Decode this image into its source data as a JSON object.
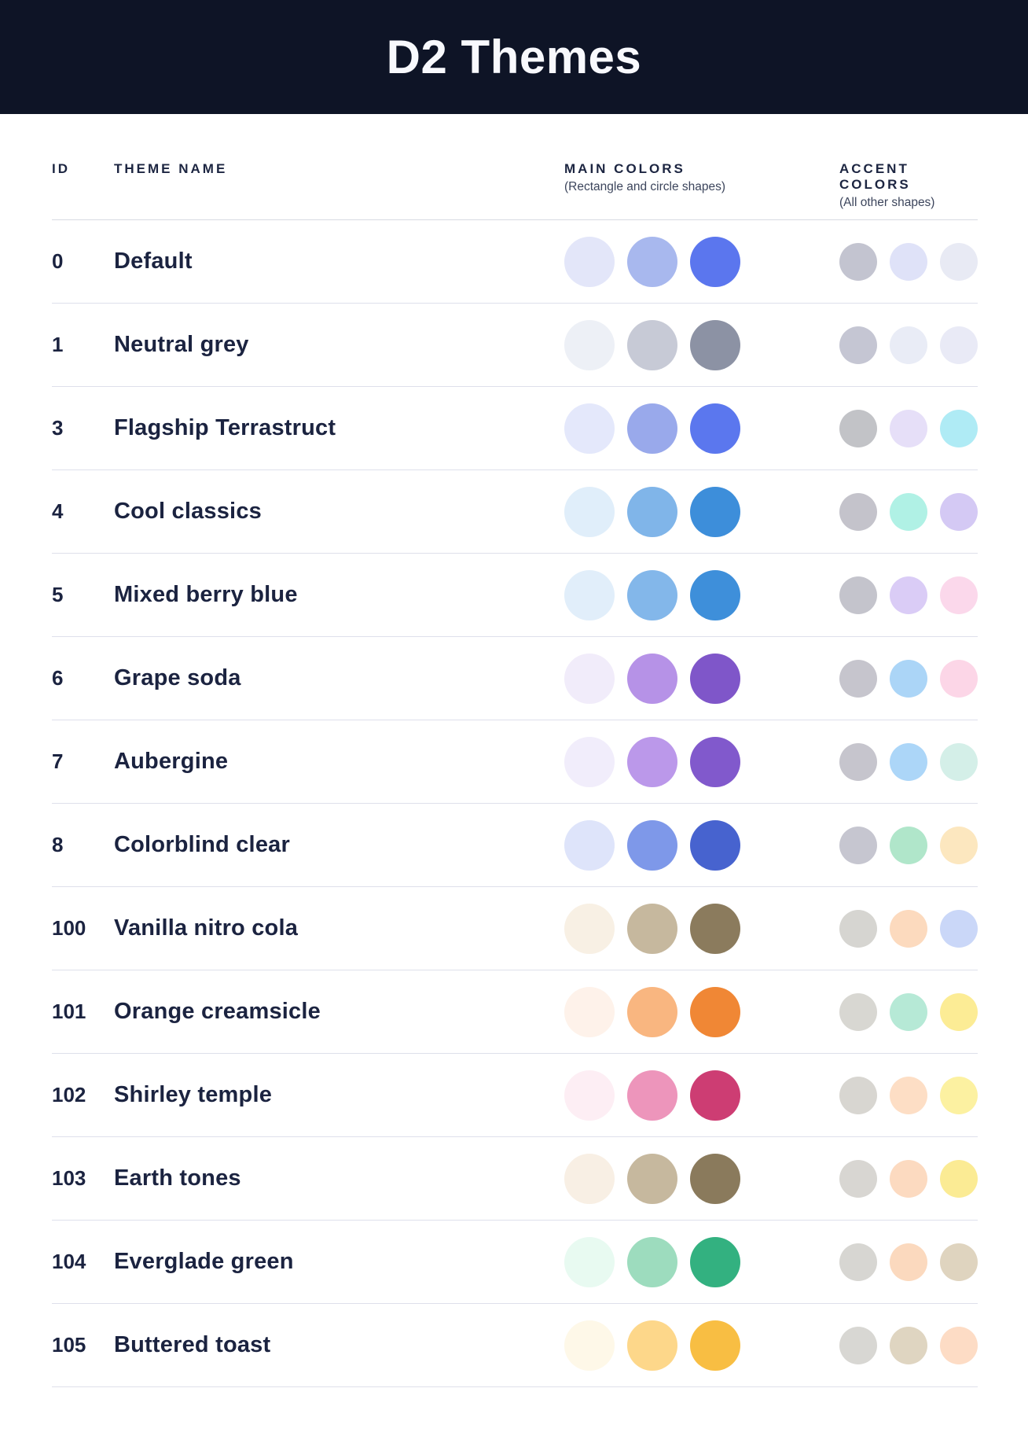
{
  "title": "D2 Themes",
  "columns": {
    "id": "ID",
    "name": "THEME NAME",
    "main": {
      "label": "MAIN COLORS",
      "sublabel": "(Rectangle and circle shapes)"
    },
    "accent": {
      "label": "ACCENT COLORS",
      "sublabel": "(All other shapes)"
    }
  },
  "colors": {
    "header_bg": "#0E1426",
    "title_color": "#F8F9FD",
    "text_color": "#1B2340",
    "subtext_color": "#3C455C",
    "divider_color": "#DEE0EB"
  },
  "themes": [
    {
      "id": "0",
      "name": "Default",
      "main": [
        "#E3E6F9",
        "#A8B8EE",
        "#5B76EE"
      ],
      "accent": [
        "#C3C4D0",
        "#DFE2F8",
        "#E8EAF4"
      ]
    },
    {
      "id": "1",
      "name": "Neutral grey",
      "main": [
        "#EDF0F6",
        "#C7CAD6",
        "#8C92A4"
      ],
      "accent": [
        "#C5C6D3",
        "#E9ECF6",
        "#E9EAF6"
      ]
    },
    {
      "id": "3",
      "name": "Flagship Terrastruct",
      "main": [
        "#E4E8FB",
        "#99A9EB",
        "#5B77EE"
      ],
      "accent": [
        "#C2C3C7",
        "#E6DFF8",
        "#AFEBF5"
      ]
    },
    {
      "id": "4",
      "name": "Cool classics",
      "main": [
        "#E0EEFA",
        "#80B5E9",
        "#3D8EDA"
      ],
      "accent": [
        "#C4C3CB",
        "#B0F1E5",
        "#D4C9F4"
      ]
    },
    {
      "id": "5",
      "name": "Mixed berry blue",
      "main": [
        "#E1EEFA",
        "#83B7EA",
        "#3E8FDA"
      ],
      "accent": [
        "#C4C4CC",
        "#DACCF6",
        "#FBD8EB"
      ]
    },
    {
      "id": "6",
      "name": "Grape soda",
      "main": [
        "#F1ECFA",
        "#B692E7",
        "#7F56C9"
      ],
      "accent": [
        "#C6C5CD",
        "#ABD5F7",
        "#FCD6E7"
      ]
    },
    {
      "id": "7",
      "name": "Aubergine",
      "main": [
        "#F1EDFB",
        "#BB98EA",
        "#8159CC"
      ],
      "accent": [
        "#C6C5CD",
        "#ACD6F8",
        "#D4EFE8"
      ]
    },
    {
      "id": "8",
      "name": "Colorblind clear",
      "main": [
        "#DEE4FA",
        "#7E98E9",
        "#4763CF"
      ],
      "accent": [
        "#C6C6D0",
        "#B0E6CA",
        "#FCE7BF"
      ]
    },
    {
      "id": "100",
      "name": "Vanilla nitro cola",
      "main": [
        "#F8F0E4",
        "#C6B89E",
        "#8B7B5D"
      ],
      "accent": [
        "#D6D5D1",
        "#FCDABE",
        "#CAD7F8"
      ]
    },
    {
      "id": "101",
      "name": "Orange creamsicle",
      "main": [
        "#FEF2EA",
        "#F9B680",
        "#F08735"
      ],
      "accent": [
        "#D8D7D2",
        "#B6E9D6",
        "#FCEC95"
      ]
    },
    {
      "id": "102",
      "name": "Shirley temple",
      "main": [
        "#FDEEF4",
        "#ED95BB",
        "#CD3D73"
      ],
      "accent": [
        "#D8D6D1",
        "#FDDEC5",
        "#FCF1A1"
      ]
    },
    {
      "id": "103",
      "name": "Earth tones",
      "main": [
        "#F8EFE4",
        "#C6B89E",
        "#8A7A5C"
      ],
      "accent": [
        "#D8D6D2",
        "#FCDAC0",
        "#FBEB94"
      ]
    },
    {
      "id": "104",
      "name": "Everglade green",
      "main": [
        "#E8FAF1",
        "#9DDCBE",
        "#33B180"
      ],
      "accent": [
        "#D7D6D2",
        "#FBD9BE",
        "#DFD4BF"
      ]
    },
    {
      "id": "105",
      "name": "Buttered toast",
      "main": [
        "#FEF8E8",
        "#FDD78A",
        "#F8BE43"
      ],
      "accent": [
        "#D8D7D3",
        "#DFD5C1",
        "#FDDCC5"
      ]
    }
  ]
}
